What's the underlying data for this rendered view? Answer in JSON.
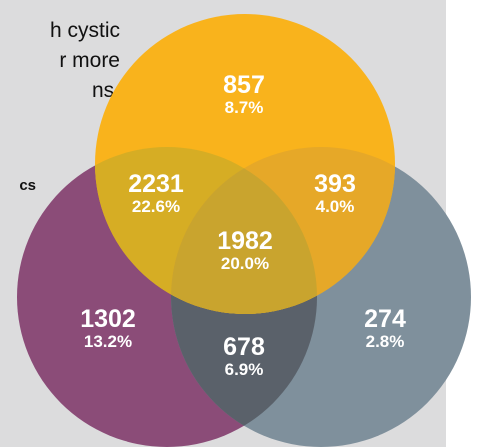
{
  "text_fragment": {
    "lines": [
      "h cystic",
      "r more",
      "ns."
    ],
    "bold": "cs"
  },
  "colors": {
    "panel": "#dcdcdd",
    "yellow": "#f9b31c",
    "purple": "#8b4c78",
    "slate": "#7f909c"
  },
  "regions": [
    {
      "id": "yellow-only",
      "count": "857",
      "percent": "8.7%"
    },
    {
      "id": "yellow-purple",
      "count": "2231",
      "percent": "22.6%"
    },
    {
      "id": "yellow-slate",
      "count": "393",
      "percent": "4.0%"
    },
    {
      "id": "all-three",
      "count": "1982",
      "percent": "20.0%"
    },
    {
      "id": "purple-only",
      "count": "1302",
      "percent": "13.2%"
    },
    {
      "id": "purple-slate",
      "count": "678",
      "percent": "6.9%"
    },
    {
      "id": "slate-only",
      "count": "274",
      "percent": "2.8%"
    }
  ]
}
